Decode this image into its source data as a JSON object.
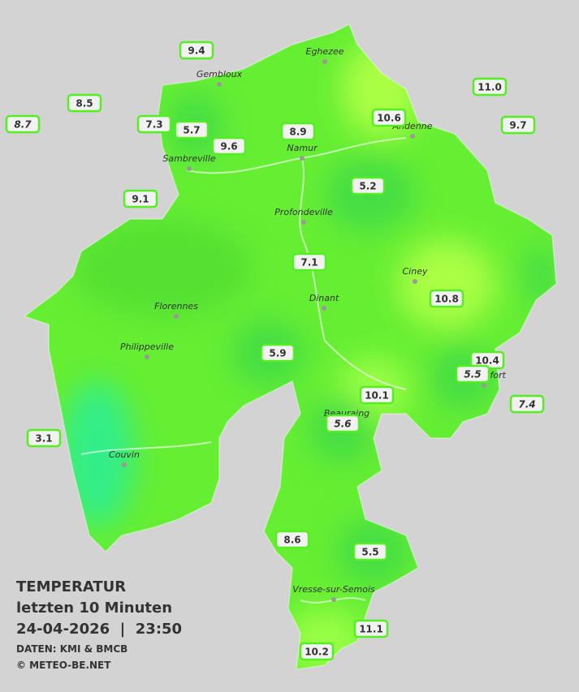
{
  "title": "TEMPERATUR",
  "subtitle": "letzten 10 Minuten",
  "timestamp": "24-04-2026  |  23:50",
  "source": "DATEN: KMI & BMCB",
  "copyright": "© METEO-BE.NET",
  "cities": [
    "Eghezee",
    "Gembloux",
    "Andenne",
    "Namur",
    "Sambreville",
    "Profondeville",
    "Ciney",
    "Dinant",
    "Florennes",
    "Philippeville",
    "Rochefort",
    "Beauraing",
    "Couvin",
    "Vresse-sur-Semois"
  ],
  "stations": [
    "9.4",
    "8.5",
    "8.7",
    "7.3",
    "5.7",
    "9.6",
    "8.9",
    "10.6",
    "11.0",
    "9.7",
    "9.1",
    "5.2",
    "7.1",
    "10.8",
    "5.9",
    "10.4",
    "5.5",
    "10.1",
    "7.4",
    "5.6",
    "3.1",
    "8.6",
    "5.5",
    "11.1",
    "10.2"
  ]
}
